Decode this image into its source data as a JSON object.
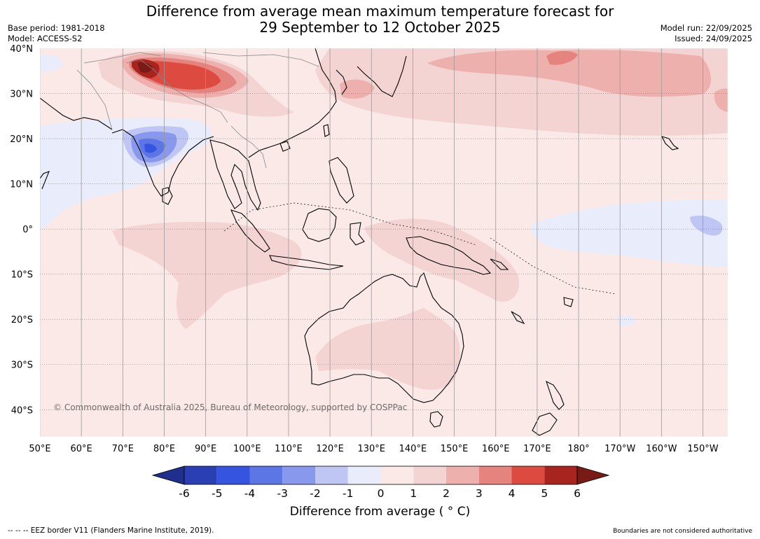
{
  "header": {
    "title_line1": "Difference from average mean maximum temperature forecast for",
    "title_line2": "29 September to 12 October 2025",
    "base_period": "Base period: 1981-2018",
    "model": "Model: ACCESS-S2",
    "model_run": "Model run: 22/09/2025",
    "issued": "Issued: 24/09/2025"
  },
  "map": {
    "extent": {
      "lon_min": 50,
      "lon_max": 216,
      "lat_min": -46,
      "lat_max": 40
    },
    "lat_ticks": [
      {
        "lat": 40,
        "label": "40°N"
      },
      {
        "lat": 30,
        "label": "30°N"
      },
      {
        "lat": 20,
        "label": "20°N"
      },
      {
        "lat": 10,
        "label": "10°N"
      },
      {
        "lat": 0,
        "label": "0°"
      },
      {
        "lat": -10,
        "label": "10°S"
      },
      {
        "lat": -20,
        "label": "20°S"
      },
      {
        "lat": -30,
        "label": "30°S"
      },
      {
        "lat": -40,
        "label": "40°S"
      }
    ],
    "lon_ticks": [
      {
        "lon": 50,
        "label": "50°E"
      },
      {
        "lon": 60,
        "label": "60°E"
      },
      {
        "lon": 70,
        "label": "70°E"
      },
      {
        "lon": 80,
        "label": "80°E"
      },
      {
        "lon": 90,
        "label": "90°E"
      },
      {
        "lon": 100,
        "label": "100°E"
      },
      {
        "lon": 110,
        "label": "110°E"
      },
      {
        "lon": 120,
        "label": "120°E"
      },
      {
        "lon": 130,
        "label": "130°E"
      },
      {
        "lon": 140,
        "label": "140°E"
      },
      {
        "lon": 150,
        "label": "150°E"
      },
      {
        "lon": 160,
        "label": "160°E"
      },
      {
        "lon": 170,
        "label": "170°E"
      },
      {
        "lon": 180,
        "label": "180°"
      },
      {
        "lon": 190,
        "label": "170°W"
      },
      {
        "lon": 200,
        "label": "160°W"
      },
      {
        "lon": 210,
        "label": "150°W"
      }
    ],
    "copyright": "© Commonwealth of Australia 2025, Bureau of Meteorology, supported by COSPPac",
    "background_color": "#fbe9e8"
  },
  "colorbar": {
    "title": "Difference from average ( ° C)",
    "labels": [
      "-6",
      "-5",
      "-4",
      "-3",
      "-2",
      "-1",
      "0",
      "1",
      "2",
      "3",
      "4",
      "5",
      "6"
    ],
    "colors": [
      "#1e2f8e",
      "#2a3fb3",
      "#3554e0",
      "#5c76e6",
      "#8898ec",
      "#bfc6f3",
      "#e9ecfb",
      "#fbe9e8",
      "#f4d4d3",
      "#eeb0ad",
      "#e5837f",
      "#dc4a40",
      "#a8251f",
      "#7a1a16"
    ]
  },
  "footer": {
    "left": "--  --  -- EEZ border V11 (Flanders Marine Institute, 2019).",
    "right": "Boundaries are not considered authoritative"
  }
}
